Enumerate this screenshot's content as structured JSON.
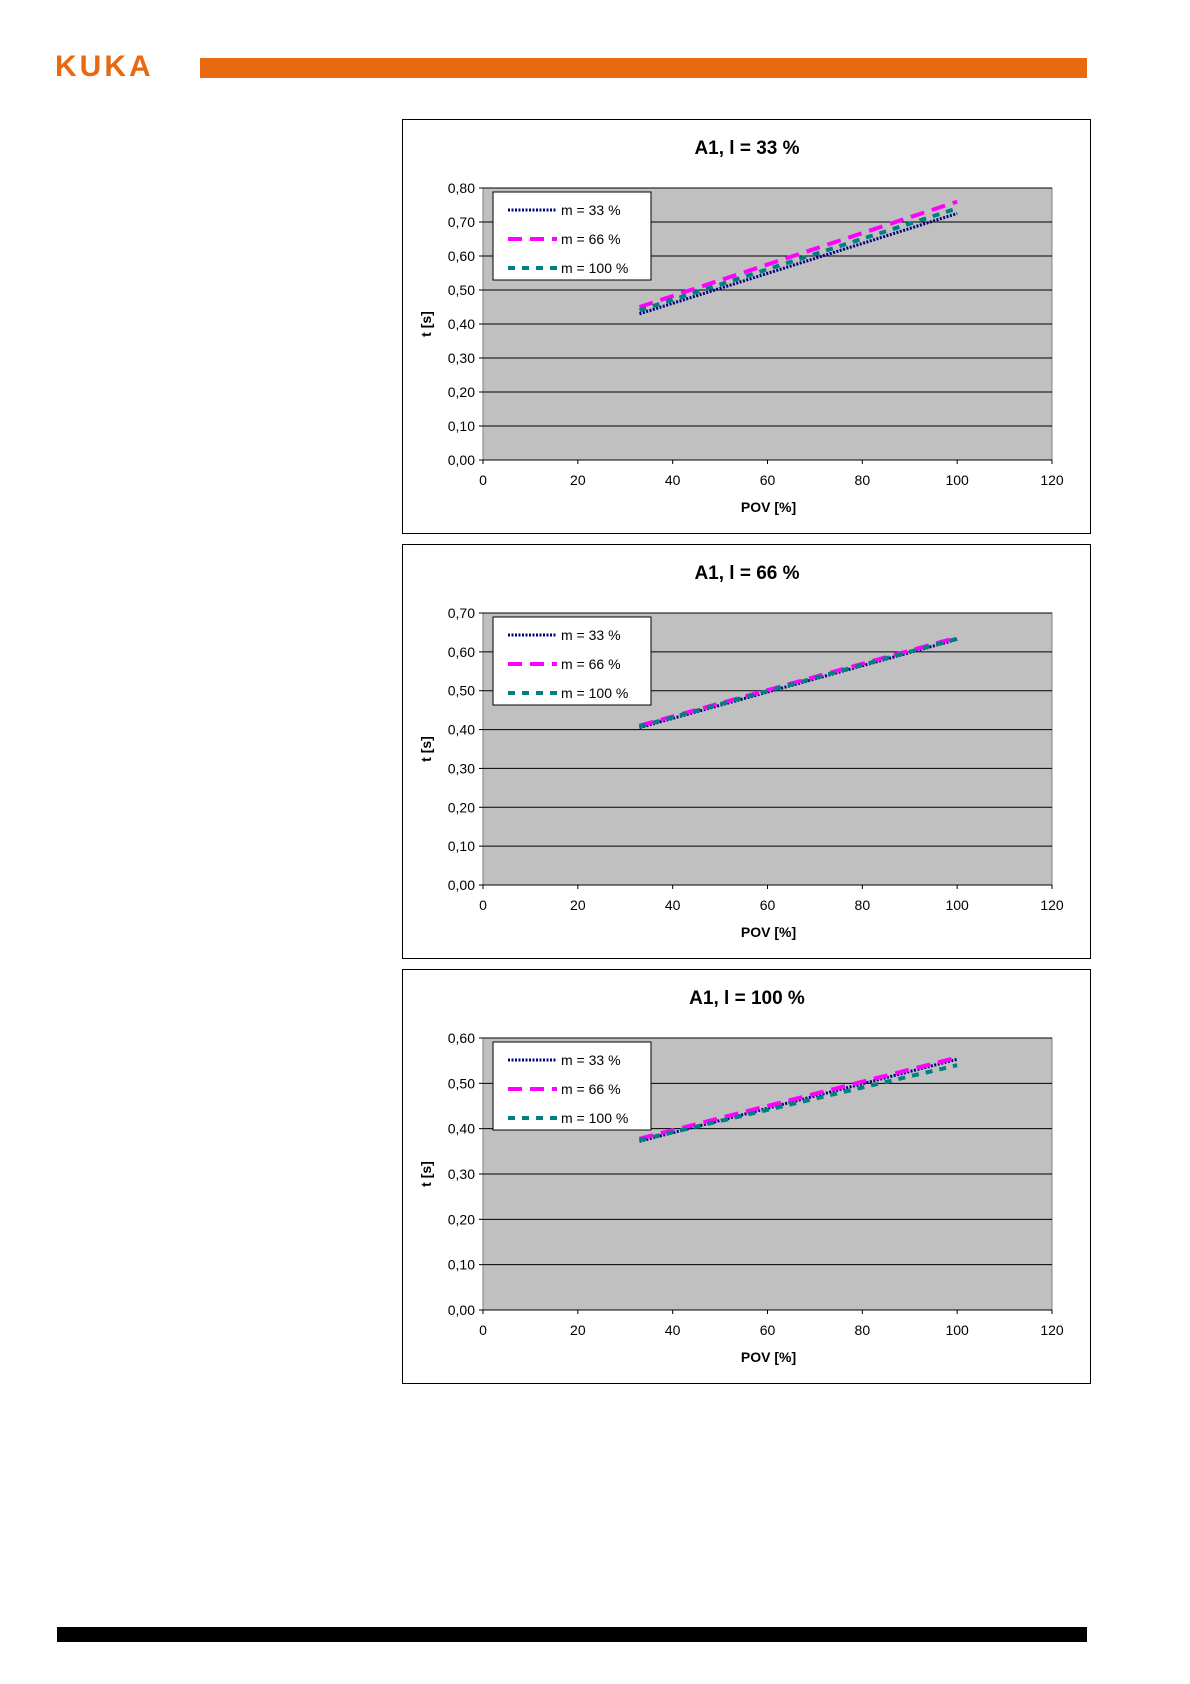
{
  "header": {
    "logo_text": "KUKA",
    "brand_color": "#E8690F"
  },
  "charts": [
    {
      "chart_data": {
        "type": "line",
        "title": "A1, l = 33 %",
        "xlabel": "POV [%]",
        "ylabel": "t [s]",
        "xlim": [
          0,
          120
        ],
        "ylim": [
          0,
          0.8
        ],
        "x_ticks": [
          "0",
          "20",
          "40",
          "60",
          "80",
          "100",
          "120"
        ],
        "y_ticks": [
          "0,00",
          "0,10",
          "0,20",
          "0,30",
          "0,40",
          "0,50",
          "0,60",
          "0,70",
          "0,80"
        ],
        "grid": true,
        "legend": "top-left",
        "plot_background": "#C0C0C0",
        "series": [
          {
            "name": "m = 33 %",
            "color": "#000080",
            "style": "dotted",
            "x": [
              33,
              100
            ],
            "y": [
              0.43,
              0.725
            ]
          },
          {
            "name": "m = 66 %",
            "color": "#FF00FF",
            "style": "long-dash",
            "x": [
              33,
              100
            ],
            "y": [
              0.45,
              0.76
            ]
          },
          {
            "name": "m = 100 %",
            "color": "#008080",
            "style": "short-dash",
            "x": [
              33,
              100
            ],
            "y": [
              0.44,
              0.74
            ]
          }
        ]
      }
    },
    {
      "chart_data": {
        "type": "line",
        "title": "A1, l = 66 %",
        "xlabel": "POV [%]",
        "ylabel": "t [s]",
        "xlim": [
          0,
          120
        ],
        "ylim": [
          0,
          0.7
        ],
        "x_ticks": [
          "0",
          "20",
          "40",
          "60",
          "80",
          "100",
          "120"
        ],
        "y_ticks": [
          "0,00",
          "0,10",
          "0,20",
          "0,30",
          "0,40",
          "0,50",
          "0,60",
          "0,70"
        ],
        "grid": true,
        "legend": "top-left",
        "plot_background": "#C0C0C0",
        "series": [
          {
            "name": "m = 33 %",
            "color": "#000080",
            "style": "dotted",
            "x": [
              33,
              100
            ],
            "y": [
              0.405,
              0.632
            ]
          },
          {
            "name": "m = 66 %",
            "color": "#FF00FF",
            "style": "long-dash",
            "x": [
              33,
              100
            ],
            "y": [
              0.41,
              0.637
            ]
          },
          {
            "name": "m = 100 %",
            "color": "#008080",
            "style": "short-dash",
            "x": [
              33,
              100
            ],
            "y": [
              0.408,
              0.634
            ]
          }
        ]
      }
    },
    {
      "chart_data": {
        "type": "line",
        "title": "A1, l = 100 %",
        "xlabel": "POV [%]",
        "ylabel": "t [s]",
        "xlim": [
          0,
          120
        ],
        "ylim": [
          0,
          0.6
        ],
        "x_ticks": [
          "0",
          "20",
          "40",
          "60",
          "80",
          "100",
          "120"
        ],
        "y_ticks": [
          "0,00",
          "0,10",
          "0,20",
          "0,30",
          "0,40",
          "0,50",
          "0,60"
        ],
        "grid": true,
        "legend": "top-left",
        "plot_background": "#C0C0C0",
        "series": [
          {
            "name": "m = 33 %",
            "color": "#000080",
            "style": "dotted",
            "x": [
              33,
              100
            ],
            "y": [
              0.372,
              0.553
            ]
          },
          {
            "name": "m = 66 %",
            "color": "#FF00FF",
            "style": "long-dash",
            "x": [
              33,
              100
            ],
            "y": [
              0.378,
              0.557
            ]
          },
          {
            "name": "m = 100 %",
            "color": "#008080",
            "style": "short-dash",
            "x": [
              33,
              100
            ],
            "y": [
              0.375,
              0.54
            ]
          }
        ]
      }
    }
  ]
}
